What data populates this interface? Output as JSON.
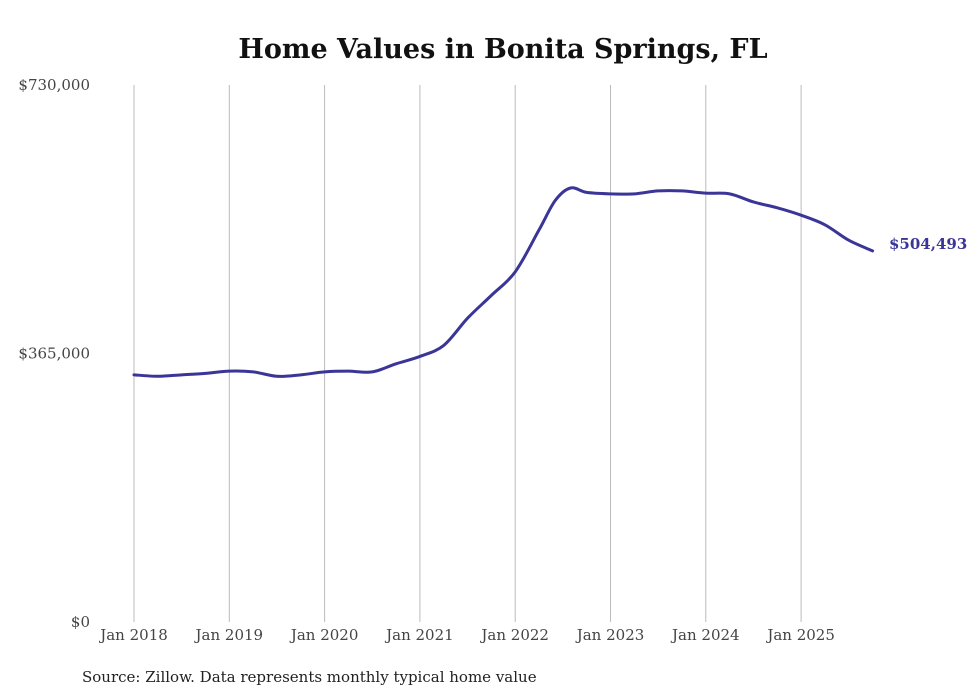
{
  "chart_data": {
    "type": "line",
    "title": "Home Values in Bonita Springs, FL",
    "xlabel": "",
    "ylabel": "",
    "ylim": [
      0,
      730000
    ],
    "yticks": [
      0,
      365000,
      730000
    ],
    "ytick_labels": [
      "$0",
      "$365,000",
      "$730,000"
    ],
    "xlim": [
      2018,
      2026
    ],
    "xticks": [
      2018,
      2019,
      2020,
      2021,
      2022,
      2023,
      2024,
      2025
    ],
    "xtick_labels": [
      "Jan 2018",
      "Jan 2019",
      "Jan 2020",
      "Jan 2021",
      "Jan 2022",
      "Jan 2023",
      "Jan 2024",
      "Jan 2025"
    ],
    "grid": "vertical",
    "series": [
      {
        "name": "Typical home value",
        "color": "#3a3596",
        "x": [
          2018.0,
          2018.25,
          2018.5,
          2018.75,
          2019.0,
          2019.25,
          2019.5,
          2019.75,
          2020.0,
          2020.25,
          2020.5,
          2020.75,
          2021.0,
          2021.25,
          2021.5,
          2021.75,
          2022.0,
          2022.25,
          2022.42,
          2022.58,
          2022.75,
          2023.0,
          2023.25,
          2023.5,
          2023.75,
          2024.0,
          2024.25,
          2024.5,
          2024.75,
          2025.0,
          2025.25,
          2025.5,
          2025.75
        ],
        "values": [
          336000,
          334000,
          336000,
          338000,
          341000,
          340000,
          334000,
          336000,
          340000,
          341000,
          340000,
          351000,
          361000,
          376000,
          413000,
          444000,
          476000,
          533000,
          573000,
          590000,
          584000,
          582000,
          582000,
          586000,
          586000,
          583000,
          582000,
          571000,
          563000,
          553000,
          540000,
          519000,
          504493
        ]
      }
    ],
    "end_label": "$504,493"
  },
  "source": "Source: Zillow. Data represents monthly typical home value"
}
